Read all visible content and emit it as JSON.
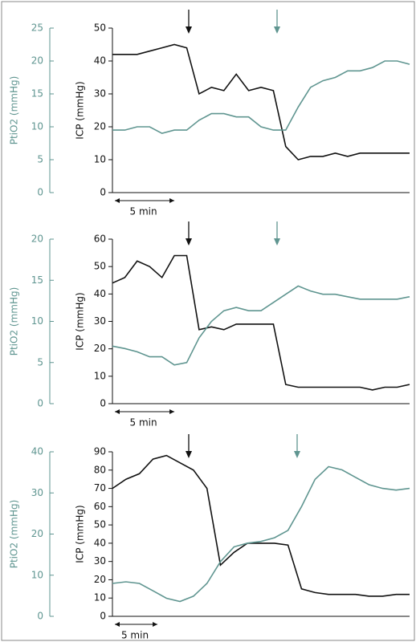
{
  "chart_data": [
    {
      "type": "line",
      "xlim": [
        0,
        24
      ],
      "x": [
        0,
        1,
        2,
        3,
        4,
        5,
        6,
        7,
        8,
        9,
        10,
        11,
        12,
        13,
        14,
        15,
        16,
        17,
        18,
        19,
        20,
        21,
        22,
        23,
        24
      ],
      "ylabel": "ICP (mmHg)",
      "y2label": "PtiO2 (mmHg)",
      "ylim": [
        0,
        50
      ],
      "yticks": [
        0,
        10,
        20,
        30,
        40,
        50
      ],
      "y2lim": [
        0,
        25
      ],
      "y2ticks": [
        0,
        5,
        10,
        15,
        20,
        25
      ],
      "annotation": "5 min",
      "series": [
        {
          "color": "#111111",
          "values": [
            42,
            42,
            42,
            43,
            44,
            45,
            44,
            30,
            32,
            31,
            36,
            31,
            32,
            31,
            14,
            10,
            11,
            11,
            12,
            11,
            12,
            12,
            12,
            12,
            12
          ]
        },
        {
          "color": "#5f9590",
          "axis": "y2",
          "values": [
            9.5,
            9.5,
            10,
            10,
            9,
            9.5,
            9.5,
            11,
            12,
            12,
            11.5,
            11.5,
            10,
            9.5,
            9.5,
            13,
            16,
            17,
            17.5,
            18.5,
            18.5,
            19,
            20,
            20,
            19.5
          ]
        }
      ]
    },
    {
      "type": "line",
      "xlim": [
        0,
        24
      ],
      "x": [
        0,
        1,
        2,
        3,
        4,
        5,
        6,
        7,
        8,
        9,
        10,
        11,
        12,
        13,
        14,
        15,
        16,
        17,
        18,
        19,
        20,
        21,
        22,
        23,
        24
      ],
      "ylabel": "ICP (mmHg)",
      "y2label": "PtiO2 (mmHg)",
      "ylim": [
        0,
        60
      ],
      "yticks": [
        0,
        10,
        20,
        30,
        40,
        50,
        60
      ],
      "y2lim": [
        0,
        20
      ],
      "y2ticks": [
        0,
        5,
        10,
        15,
        20
      ],
      "annotation": "5 min",
      "series": [
        {
          "color": "#111111",
          "values": [
            44,
            46,
            52,
            50,
            46,
            54,
            54,
            27,
            28,
            27,
            29,
            29,
            29,
            29,
            7,
            6,
            6,
            6,
            6,
            6,
            6,
            5,
            6,
            6,
            7
          ]
        },
        {
          "color": "#5f9590",
          "axis": "y2",
          "values": [
            7,
            6.7,
            6.3,
            5.7,
            5.7,
            4.7,
            5,
            8,
            10,
            11.3,
            11.7,
            11.3,
            11.3,
            12.3,
            13.3,
            14.3,
            13.7,
            13.3,
            13.3,
            13,
            12.7,
            12.7,
            12.7,
            12.7,
            13
          ]
        }
      ]
    },
    {
      "type": "line",
      "xlim": [
        0,
        33
      ],
      "x": [
        0,
        1.5,
        3,
        4.5,
        6,
        7.5,
        9,
        10.5,
        12,
        13.5,
        15,
        16.5,
        18,
        19.5,
        21,
        22.5,
        24,
        25.5,
        27,
        28.5,
        30,
        31.5,
        33
      ],
      "ylabel": "ICP (mmHg)",
      "y2label": "PtiO2 (mmHg)",
      "ylim": [
        0,
        90
      ],
      "yticks": [
        0,
        10,
        20,
        30,
        40,
        50,
        60,
        70,
        80,
        90
      ],
      "y2lim": [
        0,
        40
      ],
      "y2ticks": [
        0,
        10,
        20,
        30,
        40
      ],
      "annotation": "5 min",
      "series": [
        {
          "color": "#111111",
          "values": [
            70,
            75,
            78,
            86,
            88,
            84,
            80,
            70,
            28,
            35,
            40,
            40,
            40,
            39,
            15,
            13,
            12,
            12,
            12,
            11,
            11,
            12,
            12
          ]
        },
        {
          "color": "#5f9590",
          "axis": "y2",
          "values": [
            8,
            8.4,
            8,
            6.2,
            4.4,
            3.6,
            4.9,
            8,
            13.3,
            16.9,
            17.8,
            18.2,
            19.1,
            20.9,
            26.7,
            33.3,
            36.4,
            35.6,
            33.8,
            32,
            31.1,
            30.7,
            31.1
          ]
        }
      ]
    }
  ]
}
